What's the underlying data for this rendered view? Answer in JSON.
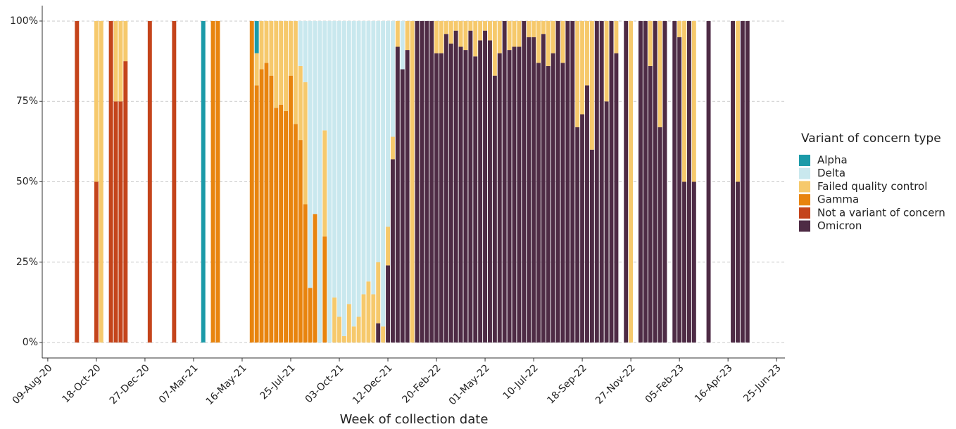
{
  "chart_data": {
    "type": "stacked_bar",
    "xlabel": "Week of collection date",
    "legend_title": "Variant of concern type",
    "legend": "right",
    "grid": true,
    "x": [
      "2020-09-20",
      "2020-10-18",
      "2020-10-25",
      "2020-11-08",
      "2020-11-15",
      "2020-11-22",
      "2020-11-29",
      "2021-01-03",
      "2021-02-07",
      "2021-03-21",
      "2021-04-04",
      "2021-04-11",
      "2021-05-30",
      "2021-06-06",
      "2021-06-13",
      "2021-06-20",
      "2021-06-27",
      "2021-07-04",
      "2021-07-11",
      "2021-07-18",
      "2021-07-25",
      "2021-08-01",
      "2021-08-08",
      "2021-08-15",
      "2021-08-22",
      "2021-08-29",
      "2021-09-05",
      "2021-09-12",
      "2021-09-19",
      "2021-09-26",
      "2021-10-03",
      "2021-10-10",
      "2021-10-17",
      "2021-10-24",
      "2021-10-31",
      "2021-11-07",
      "2021-11-14",
      "2021-11-21",
      "2021-11-28",
      "2021-12-05",
      "2021-12-12",
      "2021-12-19",
      "2021-12-26",
      "2022-01-02",
      "2022-01-09",
      "2022-01-16",
      "2022-01-23",
      "2022-01-30",
      "2022-02-06",
      "2022-02-13",
      "2022-02-20",
      "2022-02-27",
      "2022-03-06",
      "2022-03-13",
      "2022-03-20",
      "2022-03-27",
      "2022-04-03",
      "2022-04-10",
      "2022-04-17",
      "2022-04-24",
      "2022-05-01",
      "2022-05-08",
      "2022-05-15",
      "2022-05-22",
      "2022-05-29",
      "2022-06-05",
      "2022-06-12",
      "2022-06-19",
      "2022-06-26",
      "2022-07-03",
      "2022-07-10",
      "2022-07-17",
      "2022-07-24",
      "2022-07-31",
      "2022-08-07",
      "2022-08-14",
      "2022-08-21",
      "2022-08-28",
      "2022-09-04",
      "2022-09-11",
      "2022-09-18",
      "2022-09-25",
      "2022-10-02",
      "2022-10-09",
      "2022-10-16",
      "2022-10-23",
      "2022-10-30",
      "2022-11-06",
      "2022-11-20",
      "2022-11-27",
      "2022-12-11",
      "2022-12-18",
      "2022-12-25",
      "2023-01-01",
      "2023-01-08",
      "2023-01-15",
      "2023-01-29",
      "2023-02-05",
      "2023-02-12",
      "2023-02-19",
      "2023-02-26",
      "2023-03-19",
      "2023-04-23",
      "2023-04-30",
      "2023-05-07",
      "2023-05-14"
    ],
    "series": [
      {
        "name": "Alpha",
        "color": "#1b9aa8",
        "values": [
          0,
          0,
          0,
          0,
          0,
          0,
          0,
          0,
          0,
          100,
          0,
          0,
          0,
          10,
          0,
          0,
          0,
          0,
          0,
          0,
          0,
          0,
          0,
          0,
          0,
          0,
          0,
          0,
          0,
          0,
          0,
          0,
          0,
          0,
          0,
          0,
          0,
          0,
          0,
          0,
          0,
          0,
          0,
          0,
          0,
          0,
          0,
          0,
          0,
          0,
          0,
          0,
          0,
          0,
          0,
          0,
          0,
          0,
          0,
          0,
          0,
          0,
          0,
          0,
          0,
          0,
          0,
          0,
          0,
          0,
          0,
          0,
          0,
          0,
          0,
          0,
          0,
          0,
          0,
          0,
          0,
          0,
          0,
          0,
          0,
          0,
          0,
          0,
          0,
          0,
          0,
          0,
          0,
          0,
          0,
          0,
          0,
          0,
          0,
          0,
          0,
          0,
          0,
          0,
          0,
          0
        ]
      },
      {
        "name": "Delta",
        "color": "#c9e8ee",
        "values": [
          0,
          0,
          0,
          0,
          0,
          0,
          0,
          0,
          0,
          0,
          0,
          0,
          0,
          0,
          0,
          0,
          0,
          0,
          0,
          0,
          0,
          0,
          14,
          19,
          83,
          60,
          100,
          34,
          100,
          86,
          92,
          98,
          88,
          95,
          92,
          85,
          81,
          85,
          75,
          95,
          64,
          36,
          0,
          15,
          0,
          0,
          0,
          0,
          0,
          0,
          0,
          0,
          0,
          0,
          0,
          0,
          0,
          0,
          0,
          0,
          0,
          0,
          0,
          0,
          0,
          0,
          0,
          0,
          0,
          0,
          0,
          0,
          0,
          0,
          0,
          0,
          0,
          0,
          0,
          0,
          0,
          0,
          0,
          0,
          0,
          0,
          0,
          0,
          0,
          0,
          0,
          0,
          0,
          0,
          0,
          0,
          0,
          0,
          0,
          0,
          0,
          0,
          0,
          0,
          0,
          0
        ]
      },
      {
        "name": "Failed quality control",
        "color": "#f6c96c",
        "values": [
          0,
          50,
          100,
          0,
          25,
          25,
          12.5,
          0,
          0,
          0,
          0,
          0,
          0,
          10,
          15,
          13,
          17,
          27,
          26,
          28,
          17,
          32,
          23,
          38,
          0,
          0,
          0,
          33,
          0,
          14,
          8,
          2,
          12,
          5,
          8,
          15,
          19,
          15,
          19,
          5,
          12,
          7,
          8,
          0,
          9,
          100,
          0,
          0,
          0,
          0,
          10,
          10,
          4,
          7,
          3,
          8,
          9,
          3,
          11,
          6,
          3,
          6,
          17,
          10,
          0,
          9,
          8,
          8,
          0,
          5,
          5,
          13,
          4,
          14,
          10,
          0,
          13,
          0,
          0,
          33,
          29,
          20,
          40,
          0,
          0,
          25,
          0,
          10,
          0,
          100,
          0,
          0,
          14,
          0,
          33,
          0,
          0,
          5,
          50,
          0,
          50,
          0,
          0,
          50,
          0,
          0
        ]
      },
      {
        "name": "Gamma",
        "color": "#e8840e",
        "values": [
          0,
          0,
          0,
          0,
          0,
          0,
          0,
          0,
          0,
          0,
          100,
          100,
          100,
          80,
          85,
          87,
          83,
          73,
          74,
          72,
          83,
          68,
          63,
          43,
          17,
          40,
          0,
          33,
          0,
          0,
          0,
          0,
          0,
          0,
          0,
          0,
          0,
          0,
          0,
          0,
          0,
          0,
          0,
          0,
          0,
          0,
          0,
          0,
          0,
          0,
          0,
          0,
          0,
          0,
          0,
          0,
          0,
          0,
          0,
          0,
          0,
          0,
          0,
          0,
          0,
          0,
          0,
          0,
          0,
          0,
          0,
          0,
          0,
          0,
          0,
          0,
          0,
          0,
          0,
          0,
          0,
          0,
          0,
          0,
          0,
          0,
          0,
          0,
          0,
          0,
          0,
          0,
          0,
          0,
          0,
          0,
          0,
          0,
          0,
          0,
          0,
          0,
          0,
          0,
          0,
          0
        ]
      },
      {
        "name": "Not a variant of concern",
        "color": "#c4441b",
        "values": [
          100,
          50,
          0,
          100,
          75,
          75,
          87.5,
          100,
          100,
          0,
          0,
          0,
          0,
          0,
          0,
          0,
          0,
          0,
          0,
          0,
          0,
          0,
          0,
          0,
          0,
          0,
          0,
          0,
          0,
          0,
          0,
          0,
          0,
          0,
          0,
          0,
          0,
          0,
          0,
          0,
          0,
          0,
          0,
          0,
          0,
          0,
          0,
          0,
          0,
          0,
          0,
          0,
          0,
          0,
          0,
          0,
          0,
          0,
          0,
          0,
          0,
          0,
          0,
          0,
          0,
          0,
          0,
          0,
          0,
          0,
          0,
          0,
          0,
          0,
          0,
          0,
          0,
          0,
          0,
          0,
          0,
          0,
          0,
          0,
          0,
          0,
          0,
          0,
          0,
          0,
          0,
          0,
          0,
          0,
          0,
          0,
          0,
          0,
          0,
          0,
          0,
          0,
          0,
          0,
          0,
          0
        ]
      },
      {
        "name": "Omicron",
        "color": "#4e2b45",
        "values": [
          0,
          0,
          0,
          0,
          0,
          0,
          0,
          0,
          0,
          0,
          0,
          0,
          0,
          0,
          0,
          0,
          0,
          0,
          0,
          0,
          0,
          0,
          0,
          0,
          0,
          0,
          0,
          0,
          0,
          0,
          0,
          0,
          0,
          0,
          0,
          0,
          0,
          0,
          6,
          0,
          24,
          57,
          92,
          85,
          91,
          0,
          100,
          100,
          100,
          100,
          90,
          90,
          96,
          93,
          97,
          92,
          91,
          97,
          89,
          94,
          97,
          94,
          83,
          90,
          100,
          91,
          92,
          92,
          100,
          95,
          95,
          87,
          96,
          86,
          90,
          100,
          87,
          100,
          100,
          67,
          71,
          80,
          60,
          100,
          100,
          75,
          100,
          90,
          100,
          0,
          100,
          100,
          86,
          100,
          67,
          100,
          100,
          95,
          50,
          100,
          50,
          100,
          100,
          50,
          100,
          100
        ]
      }
    ],
    "xlim": [
      "2020-08-01",
      "2023-07-07"
    ],
    "xticks": [
      {
        "value": "2020-08-09",
        "label": "09-Aug-20"
      },
      {
        "value": "2020-10-18",
        "label": "18-Oct-20"
      },
      {
        "value": "2020-12-27",
        "label": "27-Dec-20"
      },
      {
        "value": "2021-03-07",
        "label": "07-Mar-21"
      },
      {
        "value": "2021-05-16",
        "label": "16-May-21"
      },
      {
        "value": "2021-07-25",
        "label": "25-Jul-21"
      },
      {
        "value": "2021-10-03",
        "label": "03-Oct-21"
      },
      {
        "value": "2021-12-12",
        "label": "12-Dec-21"
      },
      {
        "value": "2022-02-20",
        "label": "20-Feb-22"
      },
      {
        "value": "2022-05-01",
        "label": "01-May-22"
      },
      {
        "value": "2022-07-10",
        "label": "10-Jul-22"
      },
      {
        "value": "2022-09-18",
        "label": "18-Sep-22"
      },
      {
        "value": "2022-11-27",
        "label": "27-Nov-22"
      },
      {
        "value": "2023-02-05",
        "label": "05-Feb-23"
      },
      {
        "value": "2023-04-16",
        "label": "16-Apr-23"
      },
      {
        "value": "2023-06-25",
        "label": "25-Jun-23"
      }
    ],
    "ylim": [
      -4.8,
      104.8
    ],
    "yticks": [
      {
        "value": 0,
        "label": "0%"
      },
      {
        "value": 25,
        "label": "25%"
      },
      {
        "value": 50,
        "label": "50%"
      },
      {
        "value": 75,
        "label": "75%"
      },
      {
        "value": 100,
        "label": "100%"
      }
    ]
  }
}
